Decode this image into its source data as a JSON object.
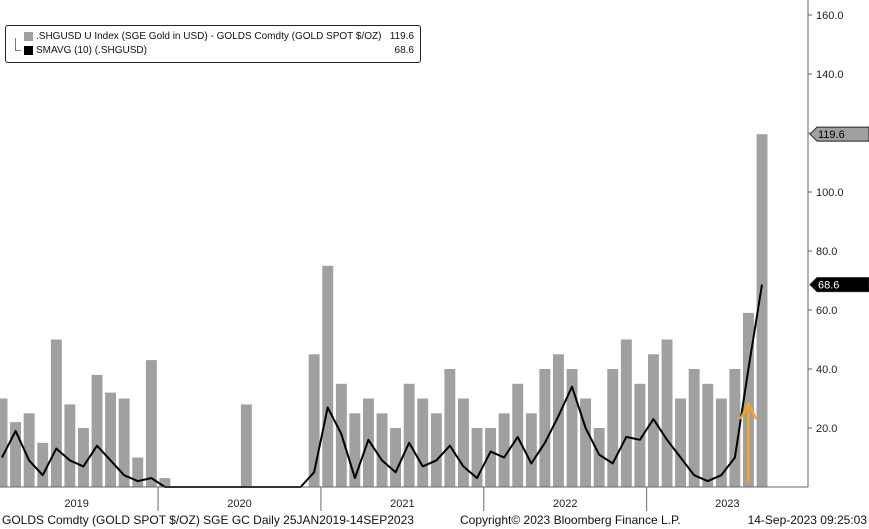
{
  "chart_data": {
    "type": "bar",
    "title": "",
    "xlabel": "",
    "ylabel": "",
    "date_range": "25JAN2019-14SEP2023",
    "ylim": [
      0,
      162
    ],
    "y_ticks": [
      "160.0",
      "140.0",
      "120.0",
      "100.0",
      "80.0",
      "60.0",
      "40.0",
      "20.0"
    ],
    "x_year_labels": [
      "2019",
      "2020",
      "2021",
      "2022",
      "2023"
    ],
    "grid": false,
    "legend_position": "top-left",
    "series": [
      {
        "name": ".SHGUSD U Index (SGE Gold in USD) - GOLDS Comdty (GOLD SPOT $/OZ)",
        "type": "bar",
        "color": "#a0a0a0",
        "last_value": "119.6",
        "x": [
          "2019-01",
          "2019-02",
          "2019-03",
          "2019-04",
          "2019-05",
          "2019-06",
          "2019-07",
          "2019-08",
          "2019-09",
          "2019-10",
          "2019-11",
          "2019-12",
          "2020-01",
          "2020-02",
          "2020-03",
          "2020-04",
          "2020-05",
          "2020-06",
          "2020-07",
          "2020-08",
          "2020-09",
          "2020-10",
          "2020-11",
          "2020-12",
          "2021-01",
          "2021-02",
          "2021-03",
          "2021-04",
          "2021-05",
          "2021-06",
          "2021-07",
          "2021-08",
          "2021-09",
          "2021-10",
          "2021-11",
          "2021-12",
          "2022-01",
          "2022-02",
          "2022-03",
          "2022-04",
          "2022-05",
          "2022-06",
          "2022-07",
          "2022-08",
          "2022-09",
          "2022-10",
          "2022-11",
          "2022-12",
          "2023-01",
          "2023-02",
          "2023-03",
          "2023-04",
          "2023-05",
          "2023-06",
          "2023-07",
          "2023-08",
          "2023-09"
        ],
        "values": [
          30,
          22,
          25,
          15,
          50,
          28,
          20,
          38,
          32,
          30,
          10,
          43,
          3,
          0,
          0,
          0,
          0,
          0,
          28,
          0,
          0,
          0,
          0,
          45,
          75,
          35,
          25,
          30,
          25,
          20,
          35,
          30,
          25,
          40,
          30,
          20,
          20,
          25,
          35,
          25,
          40,
          45,
          40,
          30,
          20,
          40,
          50,
          35,
          45,
          50,
          30,
          40,
          35,
          30,
          40,
          59,
          119.6
        ]
      },
      {
        "name": "SMAVG (10) (.SHGUSD)",
        "type": "line",
        "color": "#000000",
        "last_value": "68.6",
        "x": [
          "2019-01",
          "2019-02",
          "2019-03",
          "2019-04",
          "2019-05",
          "2019-06",
          "2019-07",
          "2019-08",
          "2019-09",
          "2019-10",
          "2019-11",
          "2019-12",
          "2020-01",
          "2020-02",
          "2020-03",
          "2020-04",
          "2020-05",
          "2020-06",
          "2020-07",
          "2020-08",
          "2020-09",
          "2020-10",
          "2020-11",
          "2020-12",
          "2021-01",
          "2021-02",
          "2021-03",
          "2021-04",
          "2021-05",
          "2021-06",
          "2021-07",
          "2021-08",
          "2021-09",
          "2021-10",
          "2021-11",
          "2021-12",
          "2022-01",
          "2022-02",
          "2022-03",
          "2022-04",
          "2022-05",
          "2022-06",
          "2022-07",
          "2022-08",
          "2022-09",
          "2022-10",
          "2022-11",
          "2022-12",
          "2023-01",
          "2023-02",
          "2023-03",
          "2023-04",
          "2023-05",
          "2023-06",
          "2023-07",
          "2023-08",
          "2023-09"
        ],
        "values": [
          10,
          19,
          9,
          4,
          13,
          9,
          7,
          14,
          9,
          4,
          2,
          3,
          0,
          0,
          0,
          0,
          0,
          0,
          0,
          0,
          0,
          0,
          0,
          5,
          27,
          18,
          3,
          16,
          9,
          5,
          15,
          7,
          9,
          14,
          7,
          3,
          12,
          10,
          17,
          8,
          15,
          24,
          34,
          20,
          11,
          8,
          17,
          16,
          23,
          16,
          10,
          4,
          2,
          4,
          10,
          40,
          68.6
        ]
      }
    ],
    "annotations": [
      {
        "type": "arrow",
        "direction": "up",
        "color": "#f5a623",
        "x": "2023-08"
      }
    ]
  },
  "footer": {
    "left": "GOLDS Comdty (GOLD SPOT $/OZ) SGE GC  Daily 25JAN2019-14SEP2023",
    "center": "Copyright© 2023 Bloomberg Finance L.P.",
    "right": "14-Sep-2023 09:25:03"
  }
}
